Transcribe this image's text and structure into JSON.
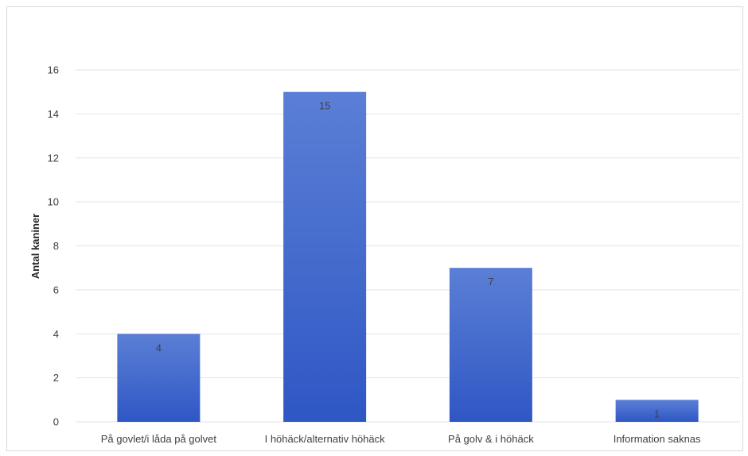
{
  "chart_data": {
    "type": "bar",
    "title": "",
    "xlabel": "",
    "ylabel": "Antal kaniner",
    "categories": [
      "På govlet/i låda på golvet",
      "I höhäck/alternativ höhäck",
      "På golv & i höhäck",
      "Information saknas"
    ],
    "values": [
      4,
      15,
      7,
      1
    ],
    "ylim": [
      0,
      16
    ],
    "yticks": [
      0,
      2,
      4,
      6,
      8,
      10,
      12,
      14,
      16
    ],
    "grid": true,
    "legend": "none",
    "colors": {
      "bar_top": "#5b7fd6",
      "bar_bottom": "#2f57c4"
    }
  }
}
